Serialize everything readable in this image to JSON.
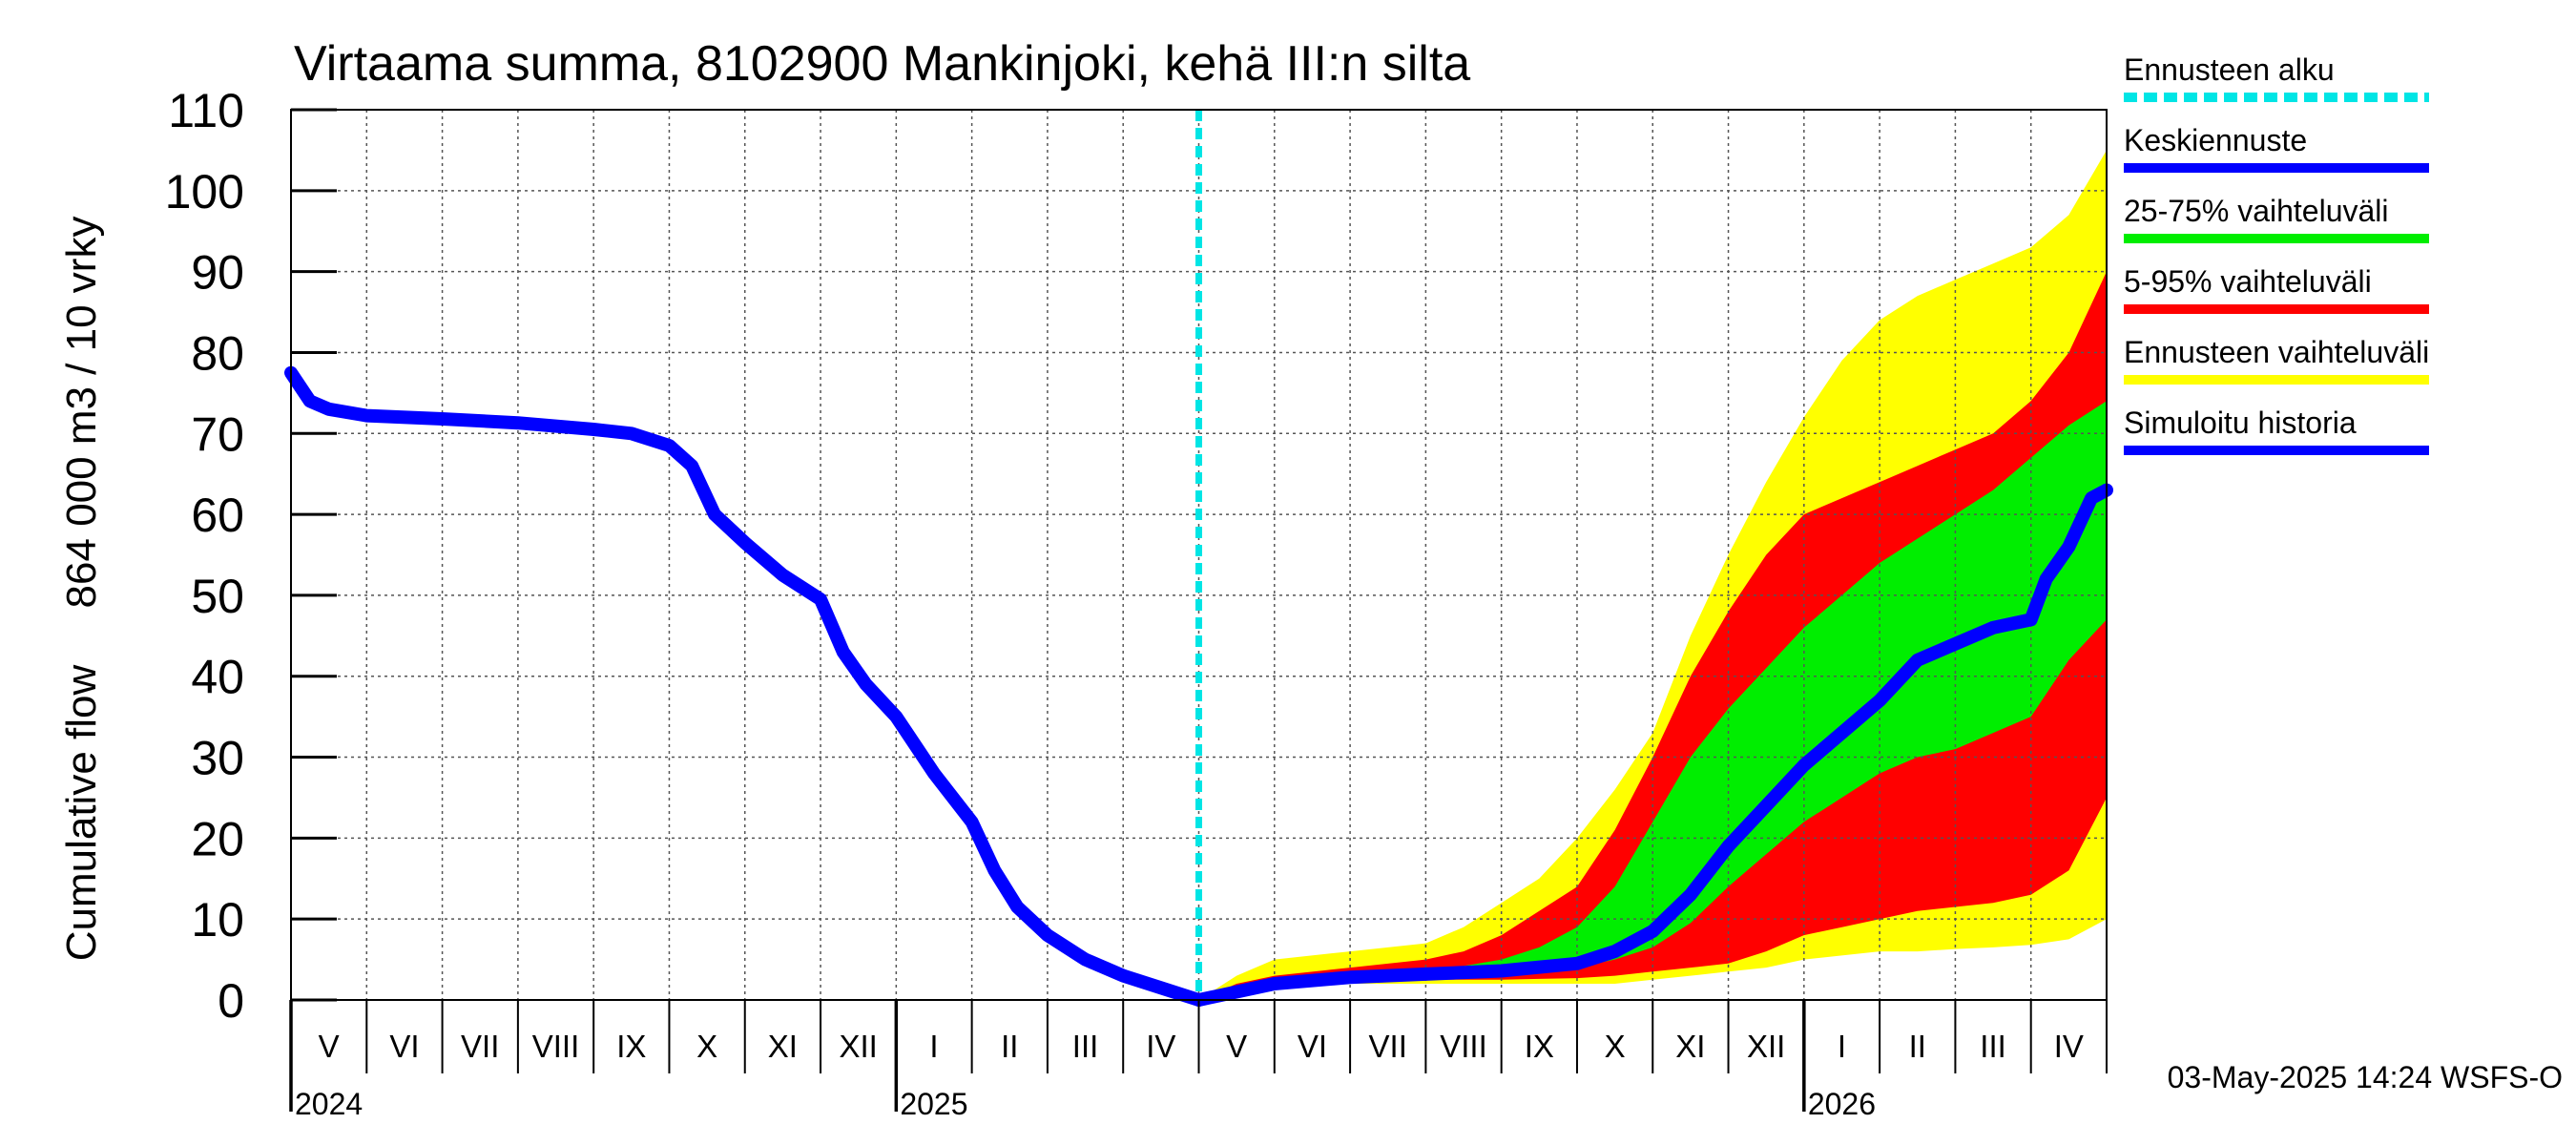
{
  "chart_data": {
    "type": "area",
    "title": "Virtaama summa, 8102900 Mankinjoki, kehä III:n silta",
    "ylabel_line1": "864 000 m3 / 10 vrky",
    "ylabel_line2": "Cumulative flow",
    "xlabel": "",
    "ylim": [
      0,
      110
    ],
    "yticks": [
      0,
      10,
      20,
      30,
      40,
      50,
      60,
      70,
      80,
      90,
      100,
      110
    ],
    "x_unit": "months since 2024-05-01",
    "xlim": [
      0,
      24
    ],
    "forecast_start": 12,
    "months": [
      "V",
      "VI",
      "VII",
      "VIII",
      "IX",
      "X",
      "XI",
      "XII",
      "I",
      "II",
      "III",
      "IV",
      "V",
      "VI",
      "VII",
      "VIII",
      "IX",
      "X",
      "XI",
      "XII",
      "I",
      "II",
      "III",
      "IV"
    ],
    "years": [
      {
        "label": "2024",
        "x": 0
      },
      {
        "label": "2025",
        "x": 8
      },
      {
        "label": "2026",
        "x": 20
      }
    ],
    "timestamp": "03-May-2025 14:24 WSFS-O",
    "colors": {
      "history": "#0000ff",
      "median": "#0000ff",
      "p25_75": "#00ee00",
      "p5_95": "#ff0000",
      "range": "#ffff00",
      "forecast_start": "#00e5e5"
    },
    "legend": {
      "placement": "right",
      "items": [
        {
          "label": "Ennusteen alku",
          "key": "forecast_start",
          "style": "dashed"
        },
        {
          "label": "Keskiennuste",
          "key": "median",
          "style": "solid"
        },
        {
          "label": "25-75% vaihteluväli",
          "key": "p25_75",
          "style": "solid"
        },
        {
          "label": "5-95% vaihteluväli",
          "key": "p5_95",
          "style": "solid"
        },
        {
          "label": "Ennusteen vaihteluväli",
          "key": "range",
          "style": "solid"
        },
        {
          "label": "Simuloitu historia",
          "key": "history",
          "style": "solid"
        }
      ]
    },
    "series": [
      {
        "name": "Simuloitu historia",
        "key": "history",
        "x": [
          0,
          0.25,
          0.5,
          1,
          2,
          3,
          4,
          4.5,
          5,
          5.3,
          5.6,
          6,
          6.5,
          7,
          7.3,
          7.6,
          8,
          8.5,
          9,
          9.3,
          9.6,
          10,
          10.5,
          11,
          11.5,
          12
        ],
        "y": [
          77.5,
          74,
          73,
          72.2,
          71.8,
          71.3,
          70.5,
          70,
          68.5,
          66,
          60,
          56.5,
          52.5,
          49.5,
          43,
          39,
          35,
          28,
          22,
          16,
          11.5,
          8,
          5,
          3,
          1.5,
          0
        ]
      },
      {
        "name": "Keskiennuste",
        "key": "median",
        "x": [
          12,
          13,
          14,
          15,
          16,
          17,
          17.5,
          18,
          18.5,
          19,
          19.5,
          20,
          20.5,
          21,
          21.5,
          22,
          22.5,
          23,
          23.2,
          23.5,
          23.8,
          24
        ],
        "y": [
          0,
          2,
          2.8,
          3.2,
          3.6,
          4.5,
          6,
          8.5,
          13,
          19,
          24,
          29,
          33,
          37,
          42,
          44,
          46,
          47,
          52,
          56,
          62,
          63
        ]
      }
    ],
    "bands": [
      {
        "name": "Ennusteen vaihteluväli",
        "key": "range",
        "x": [
          12,
          12.5,
          13,
          14,
          15,
          15.5,
          16,
          16.5,
          17,
          17.5,
          18,
          18.5,
          19,
          19.5,
          20,
          20.5,
          21,
          21.5,
          22,
          22.5,
          23,
          23.5,
          24
        ],
        "upper": [
          0,
          3,
          5,
          6,
          7,
          9,
          12,
          15,
          20,
          26,
          33,
          45,
          55,
          64,
          72,
          79,
          84,
          87,
          89,
          91,
          93,
          97,
          105
        ],
        "lower": [
          0,
          1,
          1.5,
          2,
          2,
          2,
          2,
          2,
          2,
          2,
          2.5,
          3,
          3.5,
          4,
          5,
          5.5,
          6,
          6,
          6.3,
          6.5,
          6.8,
          7.5,
          10
        ]
      },
      {
        "name": "5-95% vaihteluväli",
        "key": "p5_95",
        "x": [
          12,
          12.5,
          13,
          14,
          15,
          15.5,
          16,
          16.5,
          17,
          17.5,
          18,
          18.5,
          19,
          19.5,
          20,
          20.5,
          21,
          21.5,
          22,
          22.5,
          23,
          23.5,
          24
        ],
        "upper": [
          0,
          2,
          3,
          4,
          5,
          6,
          8,
          11,
          14,
          21,
          30,
          40,
          48,
          55,
          60,
          62,
          64,
          66,
          68,
          70,
          74,
          80,
          90
        ],
        "lower": [
          0,
          1.2,
          1.8,
          2.3,
          2.5,
          2.5,
          2.5,
          2.6,
          2.7,
          3,
          3.5,
          4,
          4.5,
          6,
          8,
          9,
          10,
          11,
          11.5,
          12,
          13,
          16,
          25
        ]
      },
      {
        "name": "25-75% vaihteluväli",
        "key": "p25_75",
        "x": [
          12,
          12.5,
          13,
          14,
          15,
          15.5,
          16,
          16.5,
          17,
          17.5,
          18,
          18.5,
          19,
          19.5,
          20,
          20.5,
          21,
          21.5,
          22,
          22.5,
          23,
          23.5,
          24
        ],
        "upper": [
          0,
          1.7,
          2.5,
          3.3,
          3.8,
          4.2,
          5,
          6.5,
          9,
          14,
          22,
          30,
          36,
          41,
          46,
          50,
          54,
          57,
          60,
          63,
          67,
          71,
          74
        ],
        "lower": [
          0,
          1.4,
          2.1,
          2.7,
          3,
          3.2,
          3.4,
          3.6,
          4,
          5,
          6.5,
          9.5,
          14,
          18,
          22,
          25,
          28,
          30,
          31,
          33,
          35,
          42,
          47
        ]
      }
    ]
  }
}
